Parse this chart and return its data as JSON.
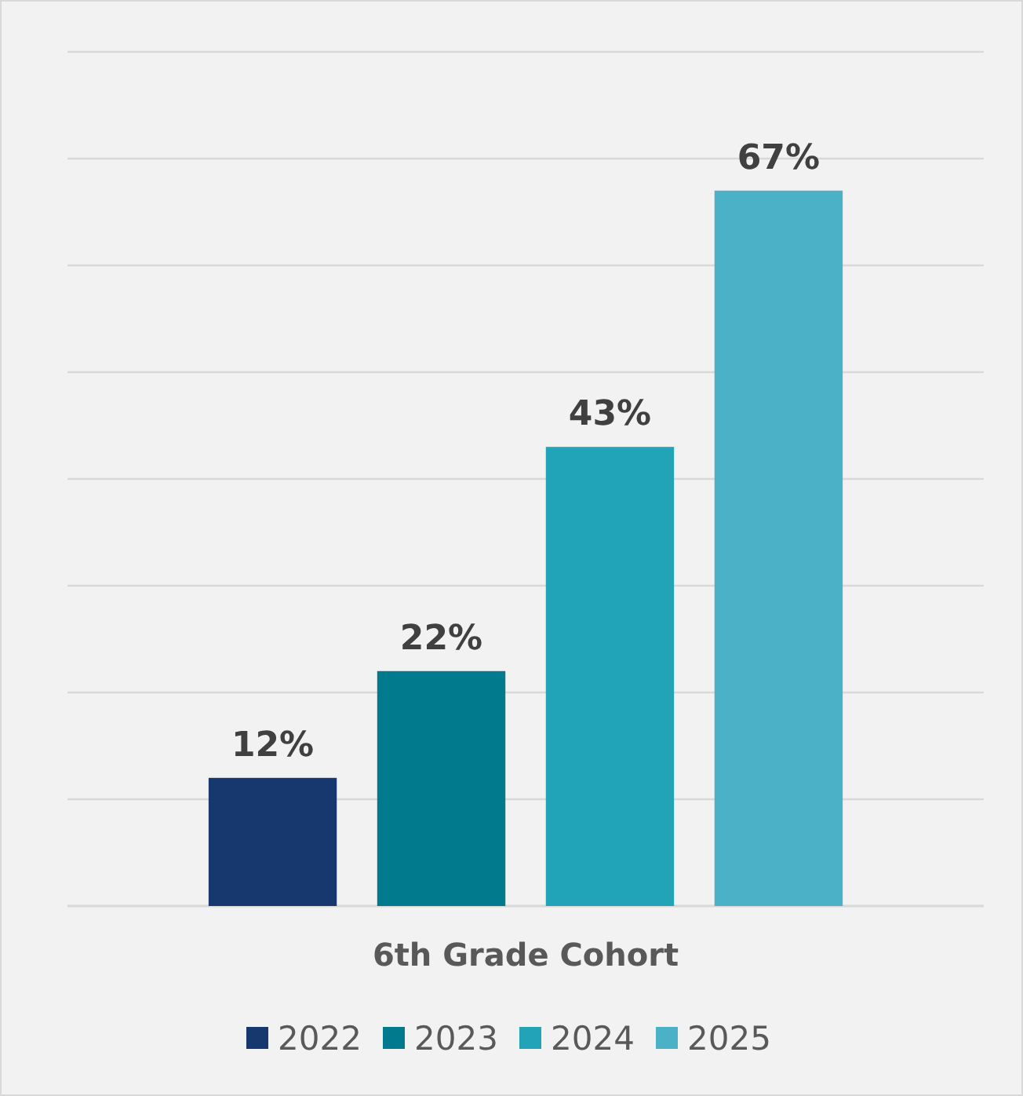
{
  "chart_data": {
    "type": "bar",
    "xlabel": "6th Grade Cohort",
    "stacked": true,
    "categories": [
      null,
      null,
      null,
      null
    ],
    "series": [
      {
        "name": "2022",
        "color": "#17386f",
        "values": [
          12,
          null,
          null,
          null
        ],
        "value_labels": [
          "12%",
          null,
          null,
          null
        ]
      },
      {
        "name": "2023",
        "color": "#007a8c",
        "values": [
          null,
          22,
          null,
          null
        ],
        "value_labels": [
          null,
          "22%",
          null,
          null
        ]
      },
      {
        "name": "2024",
        "color": "#21a4b8",
        "values": [
          null,
          null,
          43,
          null
        ],
        "value_labels": [
          null,
          null,
          "43%",
          null
        ]
      },
      {
        "name": "2025",
        "color": "#4bb1c6",
        "values": [
          null,
          null,
          null,
          67
        ],
        "value_labels": [
          null,
          null,
          null,
          "67%"
        ]
      }
    ],
    "ylim": [
      0,
      80
    ],
    "yticks": [
      {
        "value": 0,
        "label": null
      },
      {
        "value": 10,
        "label": null
      },
      {
        "value": 20,
        "label": null
      },
      {
        "value": 30,
        "label": null
      },
      {
        "value": 40,
        "label": null
      },
      {
        "value": 50,
        "label": null
      },
      {
        "value": 60,
        "label": null
      },
      {
        "value": 70,
        "label": null
      },
      {
        "value": 80,
        "label": null
      }
    ],
    "grid": "y",
    "legend": "bottom"
  }
}
